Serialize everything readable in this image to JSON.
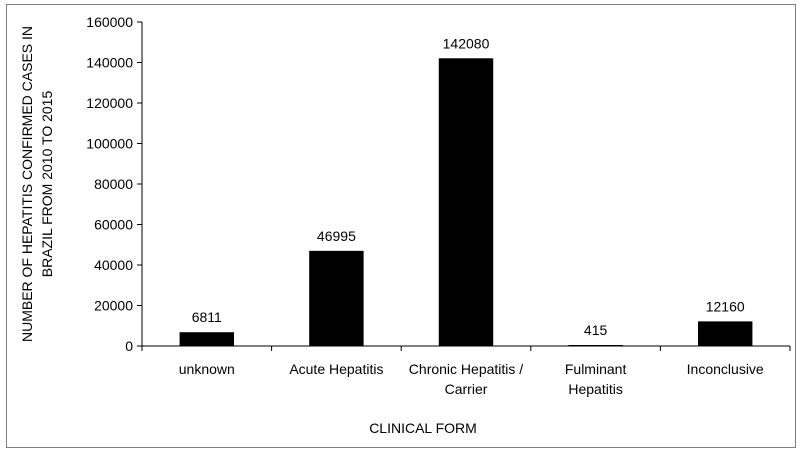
{
  "chart_data": {
    "type": "bar",
    "title": "",
    "xlabel": "CLINICAL FORM",
    "ylabel_lines": [
      "NUMBER OF HEPATITIS CONFIRMED CASES IN",
      "BRAZIL FROM 2010 TO 2015"
    ],
    "categories": [
      [
        "unknown"
      ],
      [
        "Acute Hepatitis"
      ],
      [
        "Chronic Hepatitis /",
        "Carrier"
      ],
      [
        "Fulminant",
        "Hepatitis"
      ],
      [
        "Inconclusive"
      ]
    ],
    "values": [
      6811,
      46995,
      142080,
      415,
      12160
    ],
    "data_labels": [
      "6811",
      "46995",
      "142080",
      "415",
      "12160"
    ],
    "ylim": [
      0,
      160000
    ],
    "yticks": [
      0,
      20000,
      40000,
      60000,
      80000,
      100000,
      120000,
      140000,
      160000
    ],
    "ytick_labels": [
      "0",
      "20000",
      "40000",
      "60000",
      "80000",
      "100000",
      "120000",
      "140000",
      "160000"
    ],
    "grid": false,
    "legend": "none",
    "bar_color": "#000000"
  }
}
